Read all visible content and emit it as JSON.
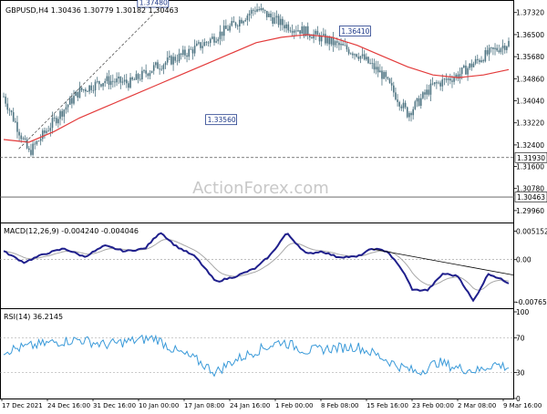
{
  "watermark": "ActionForex.com",
  "chart_data": [
    {
      "type": "candlestick",
      "title": "GBPUSD,H4  1.30436 1.30779 1.30182 1.30463",
      "instrument": "GBPUSD,H4",
      "ohlc": {
        "open": 1.30436,
        "high": 1.30779,
        "low": 1.30182,
        "close": 1.30463
      },
      "ylim": [
        1.2955,
        1.3765
      ],
      "y_ticks": [
        "1.37320",
        "1.36500",
        "1.35680",
        "1.34860",
        "1.34040",
        "1.33220",
        "1.32400",
        "1.31600",
        "1.30780",
        "1.29960"
      ],
      "y_tick_values": [
        1.3732,
        1.365,
        1.3568,
        1.3486,
        1.3404,
        1.3322,
        1.324,
        1.316,
        1.3078,
        1.2996
      ],
      "annotations": [
        {
          "label": "1.37480",
          "value": 1.3748
        },
        {
          "label": "1.33560",
          "value": 1.3356
        },
        {
          "label": "1.36410",
          "value": 1.3641
        }
      ],
      "levels": [
        {
          "label": "1.31930",
          "value": 1.3193,
          "style": "dashed"
        },
        {
          "label": "1.30463",
          "value": 1.30463,
          "style": "solid"
        }
      ],
      "color_candle": "#4e7482",
      "color_ma": "#e33b3b",
      "x": [
        0,
        5,
        10,
        15,
        20,
        25,
        30,
        35,
        40,
        45,
        50,
        55,
        60,
        65,
        70,
        75,
        80,
        85,
        90,
        95,
        100
      ],
      "price": [
        1.342,
        1.321,
        1.333,
        1.344,
        1.348,
        1.347,
        1.353,
        1.357,
        1.362,
        1.368,
        1.3748,
        1.369,
        1.366,
        1.362,
        1.358,
        1.35,
        1.3356,
        1.346,
        1.35,
        1.357,
        1.362
      ],
      "ma": [
        1.326,
        1.325,
        1.329,
        1.334,
        1.338,
        1.342,
        1.346,
        1.35,
        1.354,
        1.358,
        1.362,
        1.364,
        1.365,
        1.364,
        1.361,
        1.357,
        1.353,
        1.35,
        1.349,
        1.35,
        1.352
      ]
    },
    {
      "type": "line",
      "title": "MACD(12,26,9) -0.004240 -0.004046",
      "ylim": [
        -0.0086,
        0.0062
      ],
      "y_ticks": [
        "0.005152",
        "0.00",
        "-0.00765"
      ],
      "y_tick_values": [
        0.005152,
        0.0,
        -0.00765
      ],
      "trendline_label": "",
      "color_macd": "#1f1f8c",
      "color_signal": "#a8a8a8"
    },
    {
      "type": "line",
      "title": "RSI(14) 36.2145",
      "ylim": [
        0,
        100
      ],
      "y_ticks": [
        "100",
        "70",
        "30",
        "0"
      ],
      "y_tick_values": [
        100,
        70,
        30,
        0
      ],
      "color": "#3a9ad9"
    }
  ],
  "x_axis": {
    "tick_labels": [
      "17 Dec 2021",
      "24 Dec 16:00",
      "31 Dec 16:00",
      "10 Jan 00:00",
      "17 Jan 08:00",
      "24 Jan 16:00",
      "1 Feb 00:00",
      "8 Feb 08:00",
      "15 Feb 16:00",
      "23 Feb 00:00",
      "2 Mar 08:00",
      "9 Mar 16:00"
    ]
  }
}
